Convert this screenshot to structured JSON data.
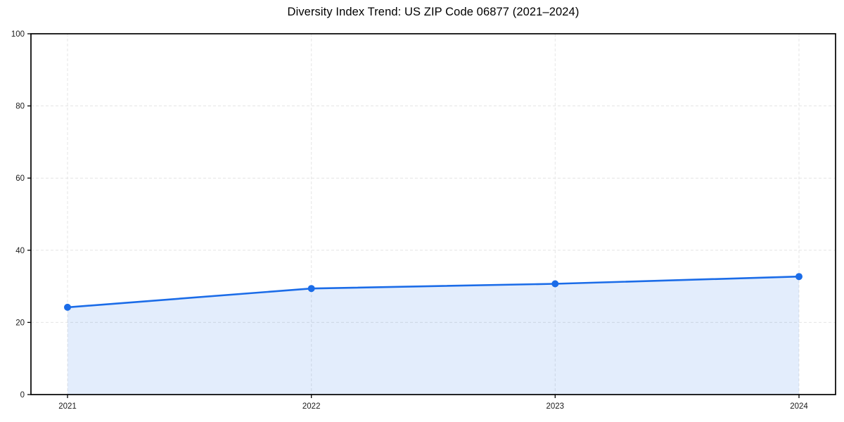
{
  "chart_data": {
    "type": "area",
    "title": "Diversity Index Trend: US ZIP Code 06877 (2021–2024)",
    "categories": [
      "2021",
      "2022",
      "2023",
      "2024"
    ],
    "x": [
      2021,
      2022,
      2023,
      2024
    ],
    "series": [
      {
        "name": "Diversity Index",
        "values": [
          24.2,
          29.4,
          30.7,
          32.7
        ]
      }
    ],
    "xlabel": "",
    "ylabel": "",
    "xlim": [
      2020.85,
      2024.15
    ],
    "ylim": [
      0,
      100
    ],
    "yticks": [
      0,
      20,
      40,
      60,
      80,
      100
    ],
    "grid": true,
    "grid_style": "dashed",
    "legend": false,
    "marker": {
      "shape": "circle",
      "radius": 5
    },
    "line_width": 2.6,
    "colors": {
      "line": "#1b6ce8",
      "marker": "#1b6ce8",
      "fill": "#1b6ce8",
      "fill_opacity": 0.12,
      "grid": "#e4e4e4",
      "spine": "#000000",
      "tick_label": "#1a1a1a",
      "title": "#000000",
      "background": "#ffffff"
    }
  }
}
